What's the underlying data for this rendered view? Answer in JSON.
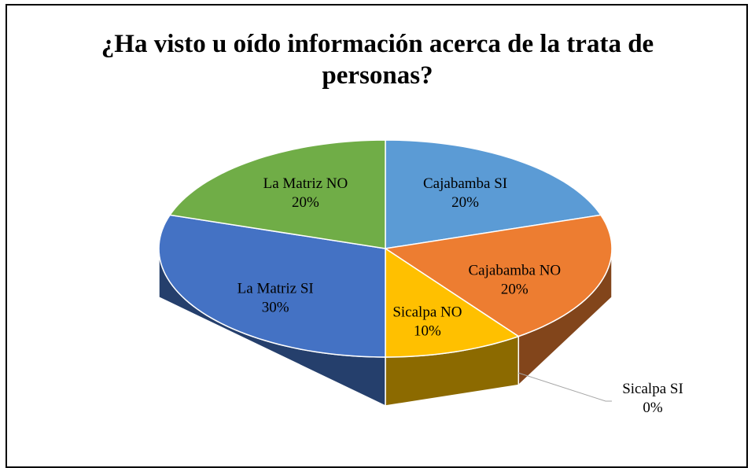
{
  "chart_data": {
    "type": "pie3d",
    "title": "¿Ha visto u oído información acerca de la trata de personas?",
    "categories": [
      "Cajabamba SI",
      "Cajabamba NO",
      "Sicalpa SI",
      "Sicalpa NO",
      "La Matriz SI",
      "La Matriz NO"
    ],
    "values": [
      20,
      20,
      0,
      10,
      30,
      20
    ],
    "value_labels": [
      "20%",
      "20%",
      "0%",
      "10%",
      "30%",
      "20%"
    ],
    "colors": [
      "#5b9bd5",
      "#ed7d31",
      "#a5a5a5",
      "#ffc000",
      "#4472c4",
      "#70ad47"
    ]
  }
}
